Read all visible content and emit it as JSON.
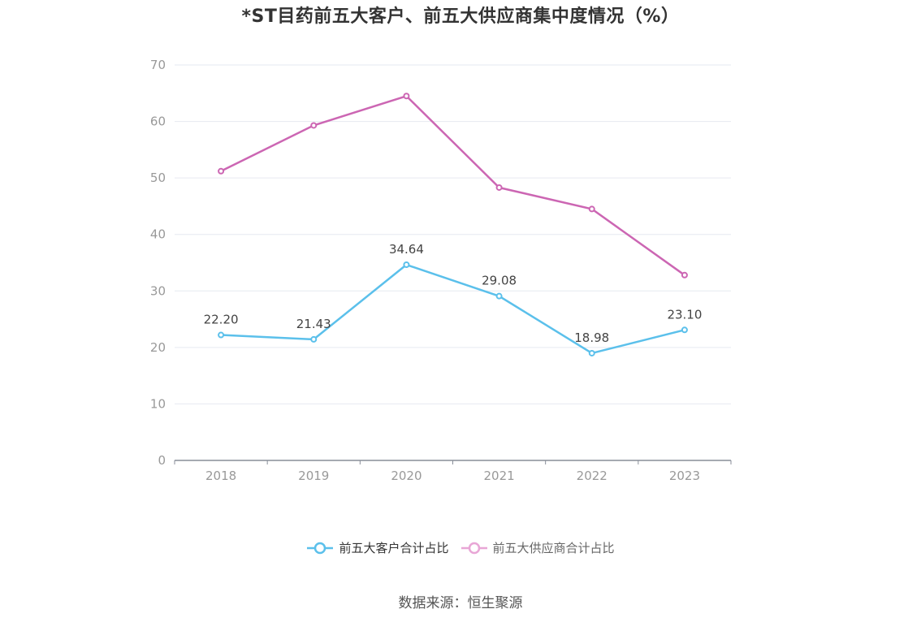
{
  "chart_data": {
    "type": "line",
    "title": "*ST目药前五大客户、前五大供应商集中度情况（%）",
    "categories": [
      "2018",
      "2019",
      "2020",
      "2021",
      "2022",
      "2023"
    ],
    "ylim": [
      0,
      70
    ],
    "yticks": [
      "0",
      "10",
      "20",
      "30",
      "40",
      "50",
      "60",
      "70"
    ],
    "grid": true,
    "legend_position": "bottom",
    "series": [
      {
        "name": "前五大客户合计占比",
        "color": "#5bc0eb",
        "values": [
          22.2,
          21.43,
          34.64,
          29.08,
          18.98,
          23.1
        ],
        "labels": [
          "22.20",
          "21.43",
          "34.64",
          "29.08",
          "18.98",
          "23.10"
        ],
        "show_labels": true
      },
      {
        "name": "前五大供应商合计占比",
        "color": "#cc66b3",
        "values": [
          51.2,
          59.3,
          64.5,
          48.3,
          44.5,
          32.8
        ],
        "show_labels": false
      }
    ]
  },
  "legend": {
    "items": [
      {
        "label": "前五大客户合计占比",
        "color": "#5bc0eb"
      },
      {
        "label": "前五大供应商合计占比",
        "color": "#e8a6d6"
      }
    ]
  },
  "source": "数据来源：恒生聚源"
}
